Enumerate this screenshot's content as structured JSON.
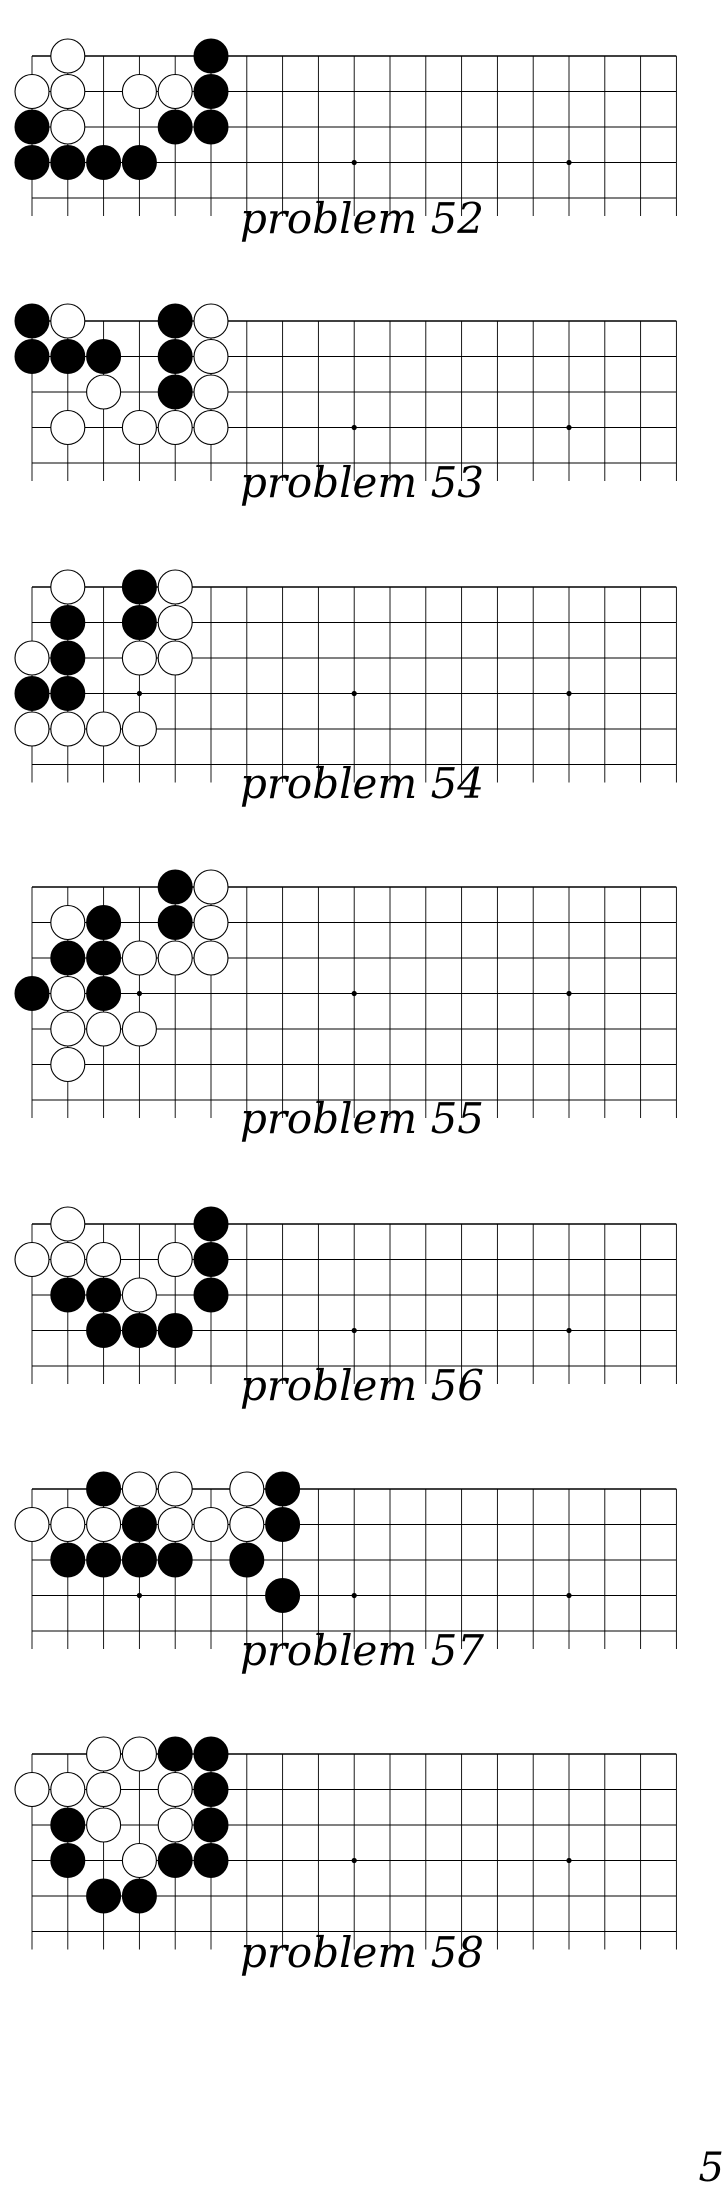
{
  "page_number": "5",
  "problems": [
    {
      "label": "problem 52",
      "board": {
        "visible_rows": 5,
        "bottom_open": true
      },
      "stones": [
        {
          "color": "black",
          "col": 5,
          "row": 0
        },
        {
          "color": "white",
          "col": 1,
          "row": 0
        },
        {
          "color": "white",
          "col": 0,
          "row": 1
        },
        {
          "color": "white",
          "col": 1,
          "row": 1
        },
        {
          "color": "white",
          "col": 3,
          "row": 1
        },
        {
          "color": "white",
          "col": 4,
          "row": 1
        },
        {
          "color": "black",
          "col": 5,
          "row": 1
        },
        {
          "color": "black",
          "col": 0,
          "row": 2
        },
        {
          "color": "white",
          "col": 1,
          "row": 2
        },
        {
          "color": "black",
          "col": 4,
          "row": 2
        },
        {
          "color": "black",
          "col": 5,
          "row": 2
        },
        {
          "color": "black",
          "col": 0,
          "row": 3
        },
        {
          "color": "black",
          "col": 1,
          "row": 3
        },
        {
          "color": "black",
          "col": 2,
          "row": 3
        },
        {
          "color": "black",
          "col": 3,
          "row": 3
        }
      ],
      "star_points": [
        {
          "col": 9,
          "row": 3
        },
        {
          "col": 15,
          "row": 3
        }
      ]
    },
    {
      "label": "problem 53",
      "board": {
        "visible_rows": 5,
        "bottom_open": true
      },
      "stones": [
        {
          "color": "black",
          "col": 0,
          "row": 0
        },
        {
          "color": "white",
          "col": 1,
          "row": 0
        },
        {
          "color": "black",
          "col": 4,
          "row": 0
        },
        {
          "color": "white",
          "col": 5,
          "row": 0
        },
        {
          "color": "black",
          "col": 0,
          "row": 1
        },
        {
          "color": "black",
          "col": 1,
          "row": 1
        },
        {
          "color": "black",
          "col": 2,
          "row": 1
        },
        {
          "color": "black",
          "col": 4,
          "row": 1
        },
        {
          "color": "white",
          "col": 5,
          "row": 1
        },
        {
          "color": "white",
          "col": 2,
          "row": 2
        },
        {
          "color": "black",
          "col": 4,
          "row": 2
        },
        {
          "color": "white",
          "col": 5,
          "row": 2
        },
        {
          "color": "white",
          "col": 1,
          "row": 3
        },
        {
          "color": "white",
          "col": 3,
          "row": 3
        },
        {
          "color": "white",
          "col": 4,
          "row": 3
        },
        {
          "color": "white",
          "col": 5,
          "row": 3
        }
      ],
      "star_points": [
        {
          "col": 9,
          "row": 3
        },
        {
          "col": 15,
          "row": 3
        }
      ]
    },
    {
      "label": "problem 54",
      "board": {
        "visible_rows": 6,
        "bottom_open": true
      },
      "stones": [
        {
          "color": "white",
          "col": 1,
          "row": 0
        },
        {
          "color": "black",
          "col": 3,
          "row": 0
        },
        {
          "color": "white",
          "col": 4,
          "row": 0
        },
        {
          "color": "black",
          "col": 1,
          "row": 1
        },
        {
          "color": "black",
          "col": 3,
          "row": 1
        },
        {
          "color": "white",
          "col": 4,
          "row": 1
        },
        {
          "color": "white",
          "col": 0,
          "row": 2
        },
        {
          "color": "black",
          "col": 1,
          "row": 2
        },
        {
          "color": "white",
          "col": 3,
          "row": 2
        },
        {
          "color": "white",
          "col": 4,
          "row": 2
        },
        {
          "color": "black",
          "col": 0,
          "row": 3
        },
        {
          "color": "black",
          "col": 1,
          "row": 3
        },
        {
          "color": "white",
          "col": 0,
          "row": 4
        },
        {
          "color": "white",
          "col": 1,
          "row": 4
        },
        {
          "color": "white",
          "col": 2,
          "row": 4
        },
        {
          "color": "white",
          "col": 3,
          "row": 4
        }
      ],
      "star_points": [
        {
          "col": 3,
          "row": 3
        },
        {
          "col": 9,
          "row": 3
        },
        {
          "col": 15,
          "row": 3
        }
      ]
    },
    {
      "label": "problem 55",
      "board": {
        "visible_rows": 7,
        "bottom_open": true
      },
      "stones": [
        {
          "color": "black",
          "col": 4,
          "row": 0
        },
        {
          "color": "white",
          "col": 5,
          "row": 0
        },
        {
          "color": "white",
          "col": 1,
          "row": 1
        },
        {
          "color": "black",
          "col": 2,
          "row": 1
        },
        {
          "color": "black",
          "col": 4,
          "row": 1
        },
        {
          "color": "white",
          "col": 5,
          "row": 1
        },
        {
          "color": "black",
          "col": 1,
          "row": 2
        },
        {
          "color": "black",
          "col": 2,
          "row": 2
        },
        {
          "color": "white",
          "col": 3,
          "row": 2
        },
        {
          "color": "white",
          "col": 4,
          "row": 2
        },
        {
          "color": "white",
          "col": 5,
          "row": 2
        },
        {
          "color": "black",
          "col": 0,
          "row": 3
        },
        {
          "color": "white",
          "col": 1,
          "row": 3
        },
        {
          "color": "black",
          "col": 2,
          "row": 3
        },
        {
          "color": "white",
          "col": 1,
          "row": 4
        },
        {
          "color": "white",
          "col": 2,
          "row": 4
        },
        {
          "color": "white",
          "col": 3,
          "row": 4
        },
        {
          "color": "white",
          "col": 1,
          "row": 5
        }
      ],
      "star_points": [
        {
          "col": 3,
          "row": 3
        },
        {
          "col": 9,
          "row": 3
        },
        {
          "col": 15,
          "row": 3
        }
      ]
    },
    {
      "label": "problem 56",
      "board": {
        "visible_rows": 5,
        "bottom_open": true
      },
      "stones": [
        {
          "color": "white",
          "col": 1,
          "row": 0
        },
        {
          "color": "black",
          "col": 5,
          "row": 0
        },
        {
          "color": "white",
          "col": 0,
          "row": 1
        },
        {
          "color": "white",
          "col": 1,
          "row": 1
        },
        {
          "color": "white",
          "col": 2,
          "row": 1
        },
        {
          "color": "white",
          "col": 4,
          "row": 1
        },
        {
          "color": "black",
          "col": 5,
          "row": 1
        },
        {
          "color": "black",
          "col": 1,
          "row": 2
        },
        {
          "color": "black",
          "col": 2,
          "row": 2
        },
        {
          "color": "white",
          "col": 3,
          "row": 2
        },
        {
          "color": "black",
          "col": 5,
          "row": 2
        },
        {
          "color": "black",
          "col": 2,
          "row": 3
        },
        {
          "color": "black",
          "col": 3,
          "row": 3
        },
        {
          "color": "black",
          "col": 4,
          "row": 3
        }
      ],
      "star_points": [
        {
          "col": 9,
          "row": 3
        },
        {
          "col": 15,
          "row": 3
        }
      ]
    },
    {
      "label": "problem 57",
      "board": {
        "visible_rows": 5,
        "bottom_open": true
      },
      "stones": [
        {
          "color": "black",
          "col": 2,
          "row": 0
        },
        {
          "color": "white",
          "col": 3,
          "row": 0
        },
        {
          "color": "white",
          "col": 4,
          "row": 0
        },
        {
          "color": "white",
          "col": 6,
          "row": 0
        },
        {
          "color": "black",
          "col": 7,
          "row": 0
        },
        {
          "color": "white",
          "col": 0,
          "row": 1
        },
        {
          "color": "white",
          "col": 1,
          "row": 1
        },
        {
          "color": "white",
          "col": 2,
          "row": 1
        },
        {
          "color": "black",
          "col": 3,
          "row": 1
        },
        {
          "color": "white",
          "col": 4,
          "row": 1
        },
        {
          "color": "white",
          "col": 5,
          "row": 1
        },
        {
          "color": "white",
          "col": 6,
          "row": 1
        },
        {
          "color": "black",
          "col": 7,
          "row": 1
        },
        {
          "color": "black",
          "col": 1,
          "row": 2
        },
        {
          "color": "black",
          "col": 2,
          "row": 2
        },
        {
          "color": "black",
          "col": 3,
          "row": 2
        },
        {
          "color": "black",
          "col": 4,
          "row": 2
        },
        {
          "color": "black",
          "col": 6,
          "row": 2
        },
        {
          "color": "black",
          "col": 7,
          "row": 3
        }
      ],
      "star_points": [
        {
          "col": 3,
          "row": 3
        },
        {
          "col": 9,
          "row": 3
        },
        {
          "col": 15,
          "row": 3
        }
      ]
    },
    {
      "label": "problem 58",
      "board": {
        "visible_rows": 6,
        "bottom_open": true
      },
      "stones": [
        {
          "color": "white",
          "col": 2,
          "row": 0
        },
        {
          "color": "white",
          "col": 3,
          "row": 0
        },
        {
          "color": "black",
          "col": 4,
          "row": 0
        },
        {
          "color": "black",
          "col": 5,
          "row": 0
        },
        {
          "color": "white",
          "col": 0,
          "row": 1
        },
        {
          "color": "white",
          "col": 1,
          "row": 1
        },
        {
          "color": "white",
          "col": 2,
          "row": 1
        },
        {
          "color": "white",
          "col": 4,
          "row": 1
        },
        {
          "color": "black",
          "col": 5,
          "row": 1
        },
        {
          "color": "black",
          "col": 1,
          "row": 2
        },
        {
          "color": "white",
          "col": 2,
          "row": 2
        },
        {
          "color": "white",
          "col": 4,
          "row": 2
        },
        {
          "color": "black",
          "col": 5,
          "row": 2
        },
        {
          "color": "black",
          "col": 1,
          "row": 3
        },
        {
          "color": "white",
          "col": 3,
          "row": 3
        },
        {
          "color": "black",
          "col": 4,
          "row": 3
        },
        {
          "color": "black",
          "col": 5,
          "row": 3
        },
        {
          "color": "black",
          "col": 2,
          "row": 4
        },
        {
          "color": "black",
          "col": 3,
          "row": 4
        }
      ],
      "star_points": [
        {
          "col": 9,
          "row": 3
        },
        {
          "col": 15,
          "row": 3
        }
      ]
    }
  ]
}
